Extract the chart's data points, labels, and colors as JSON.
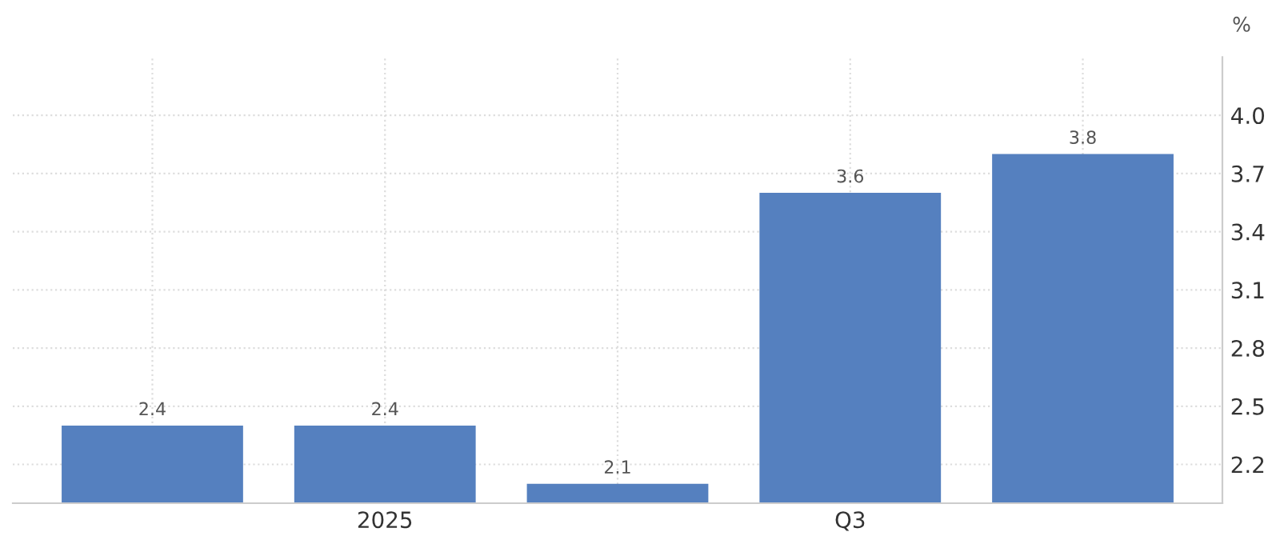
{
  "chart_data": {
    "type": "bar",
    "categories": [
      null,
      "2025",
      null,
      "Q3",
      null
    ],
    "values": [
      2.4,
      2.4,
      2.1,
      3.6,
      3.8
    ],
    "color": "#5580bf",
    "ylabel": "%",
    "ylim": [
      2.0,
      4.3
    ],
    "yticks": [
      2.2,
      2.5,
      2.8,
      3.1,
      3.4,
      3.7,
      {
        "value": 4.0,
        "label": "4.0"
      }
    ],
    "grid": true,
    "data_labels": true
  }
}
